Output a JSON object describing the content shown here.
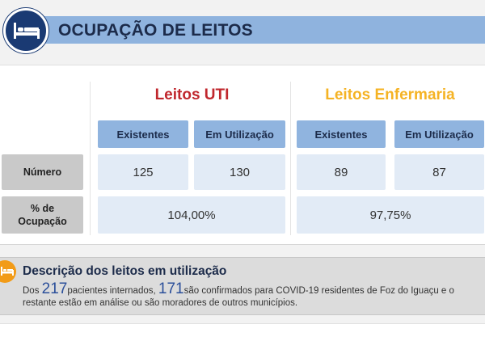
{
  "header": {
    "title": "OCUPAÇÃO DE LEITOS",
    "icon": "bed-icon"
  },
  "uti": {
    "title": "Leitos UTI",
    "color": "#c0272d",
    "col_existentes": "Existentes",
    "col_em_utilizacao": "Em Utilização",
    "numero_existentes": "125",
    "numero_em_utilizacao": "130",
    "ocupacao": "104,00%"
  },
  "enfermaria": {
    "title": "Leitos Enfermaria",
    "color": "#f5b324",
    "col_existentes": "Existentes",
    "col_em_utilizacao": "Em Utilização",
    "numero_existentes": "89",
    "numero_em_utilizacao": "87",
    "ocupacao": "97,75%"
  },
  "rows": {
    "numero_label": "Número",
    "ocupacao_label_line1": "% de",
    "ocupacao_label_line2": "Ocupação"
  },
  "descricao": {
    "title": "Descrição dos leitos em utilização",
    "text_prefix": "Dos",
    "pacientes_count": "217",
    "text_mid": "pacientes internados,",
    "confirmados_count": "171",
    "text_suffix": "são confirmados para COVID-19 residentes de Foz do Iguaçu e o restante estão em análise ou são moradores de outros municípios.",
    "icon": "bed-icon"
  }
}
